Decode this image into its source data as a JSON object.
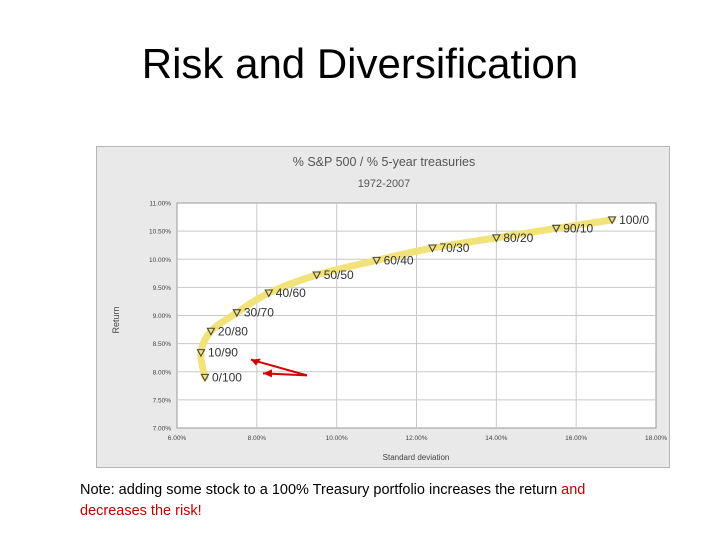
{
  "slide": {
    "title": "Risk and Diversification",
    "note_main": "Note: adding some stock to a 100% Treasury portfolio increases the return ",
    "note_red_1": "and",
    "note_red_2": "decreases the risk!"
  },
  "colors": {
    "curve": "#f2e27a",
    "marker": "#444444",
    "arrow": "#d40000",
    "red_text": "#c00000"
  },
  "chart_data": {
    "type": "scatter",
    "title": "% S&P 500 / % 5-year treasuries",
    "subtitle": "1972-2007",
    "xlabel": "Standard deviation",
    "ylabel": "Return",
    "xlim": [
      6.0,
      18.0
    ],
    "ylim": [
      7.0,
      11.0
    ],
    "x_ticks": [
      "6.00%",
      "8.00%",
      "10.00%",
      "12.00%",
      "14.00%",
      "16.00%",
      "18.00%"
    ],
    "y_ticks": [
      "11.00%",
      "10.50%",
      "10.00%",
      "9.50%",
      "9.00%",
      "8.50%",
      "8.00%",
      "7.50%",
      "7.00%"
    ],
    "grid": true,
    "points": [
      {
        "label": "0/100",
        "x": 6.7,
        "y": 7.9
      },
      {
        "label": "10/90",
        "x": 6.6,
        "y": 8.34
      },
      {
        "label": "20/80",
        "x": 6.85,
        "y": 8.72
      },
      {
        "label": "30/70",
        "x": 7.5,
        "y": 9.05
      },
      {
        "label": "40/60",
        "x": 8.3,
        "y": 9.4
      },
      {
        "label": "50/50",
        "x": 9.5,
        "y": 9.72
      },
      {
        "label": "60/40",
        "x": 11.0,
        "y": 9.98
      },
      {
        "label": "70/30",
        "x": 12.4,
        "y": 10.2
      },
      {
        "label": "80/20",
        "x": 14.0,
        "y": 10.38
      },
      {
        "label": "90/10",
        "x": 15.5,
        "y": 10.55
      },
      {
        "label": "100/0",
        "x": 16.9,
        "y": 10.7
      }
    ]
  }
}
